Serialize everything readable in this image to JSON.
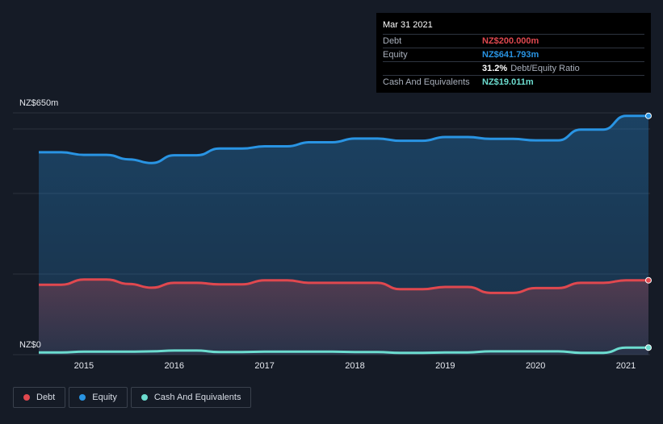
{
  "colors": {
    "background": "#151b26",
    "debt": "#e0484f",
    "equity": "#2994e3",
    "cash": "#6cdccf",
    "grid": "#2a313c",
    "axis_text": "#e6e9ef"
  },
  "tooltip": {
    "date": "Mar 31 2021",
    "rows": [
      {
        "label": "Debt",
        "value": "NZ$200.000m",
        "color": "#e0484f"
      },
      {
        "label": "Equity",
        "value": "NZ$641.793m",
        "color": "#2994e3"
      },
      {
        "label": "",
        "value": "31.2%",
        "suffix": "Debt/Equity Ratio"
      },
      {
        "label": "Cash And Equivalents",
        "value": "NZ$19.011m",
        "color": "#6cdccf"
      }
    ]
  },
  "chart_data": {
    "type": "area",
    "y_top_label": "NZ$650m",
    "y_bottom_label": "NZ$0",
    "ylim": [
      0,
      650
    ],
    "xlim": [
      2014.5,
      2021.25
    ],
    "x_ticks": [
      "2015",
      "2016",
      "2017",
      "2018",
      "2019",
      "2020",
      "2021"
    ],
    "x": [
      2014.5,
      2014.75,
      2015.0,
      2015.25,
      2015.5,
      2015.75,
      2016.0,
      2016.25,
      2016.5,
      2016.75,
      2017.0,
      2017.25,
      2017.5,
      2017.75,
      2018.0,
      2018.25,
      2018.5,
      2018.75,
      2019.0,
      2019.25,
      2019.5,
      2019.75,
      2020.0,
      2020.25,
      2020.5,
      2020.75,
      2021.0,
      2021.25
    ],
    "series": [
      {
        "name": "Debt",
        "color": "#e0484f",
        "values": [
          188,
          188,
          202,
          202,
          190,
          180,
          193,
          193,
          189,
          189,
          200,
          200,
          193,
          193,
          193,
          193,
          176,
          176,
          182,
          182,
          166,
          166,
          179,
          179,
          193,
          193,
          200,
          200
        ]
      },
      {
        "name": "Equity",
        "color": "#2994e3",
        "values": [
          544,
          544,
          537,
          537,
          525,
          515,
          536,
          536,
          554,
          554,
          560,
          560,
          571,
          571,
          581,
          581,
          575,
          575,
          585,
          585,
          580,
          580,
          576,
          576,
          605,
          605,
          642,
          642
        ]
      },
      {
        "name": "Cash And Equivalents",
        "color": "#6cdccf",
        "values": [
          6,
          6,
          8,
          8,
          8,
          9,
          11,
          11,
          7,
          7,
          8,
          8,
          8,
          8,
          7,
          7,
          5,
          5,
          6,
          6,
          9,
          9,
          9,
          9,
          5,
          5,
          19,
          19
        ]
      }
    ],
    "legend": [
      "Debt",
      "Equity",
      "Cash And Equivalents"
    ],
    "legend_placement": "bottom-left",
    "grid": true
  }
}
